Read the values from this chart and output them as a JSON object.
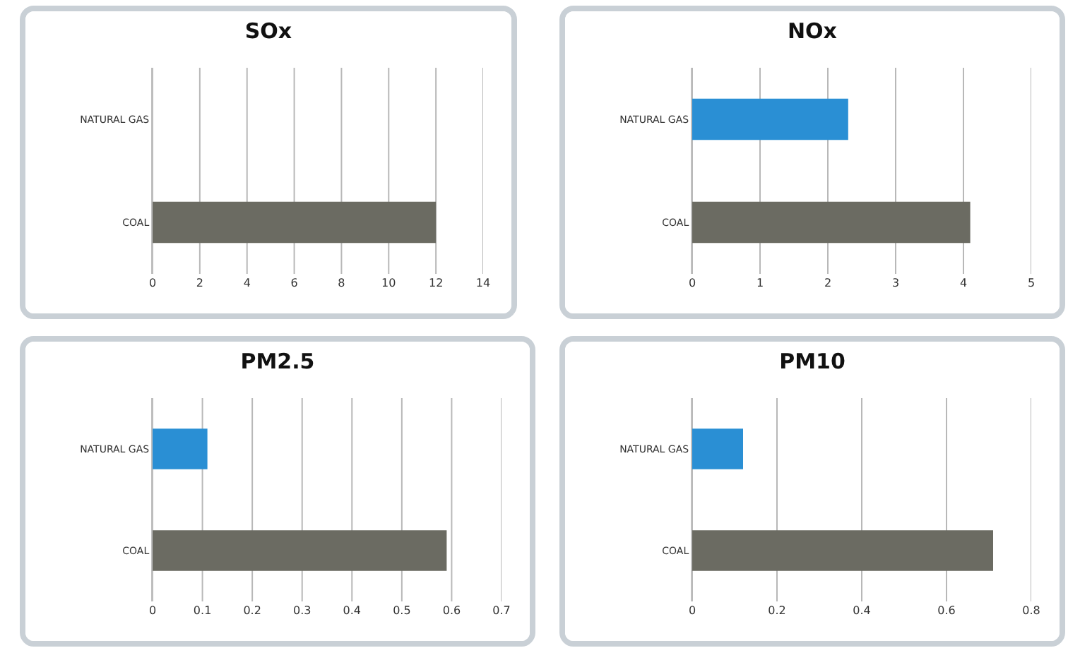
{
  "chart_data": [
    {
      "type": "bar",
      "title": "SOx",
      "orientation": "horizontal",
      "categories": [
        "NATURAL GAS",
        "COAL"
      ],
      "values": [
        0,
        12
      ],
      "colors": [
        "#2a8fd4",
        "#6b6b62"
      ],
      "xlim": [
        0,
        14
      ],
      "xticks": [
        0,
        2,
        4,
        6,
        8,
        10,
        12,
        14
      ],
      "grid": "x"
    },
    {
      "type": "bar",
      "title": "NOx",
      "orientation": "horizontal",
      "categories": [
        "NATURAL GAS",
        "COAL"
      ],
      "values": [
        2.3,
        4.1
      ],
      "colors": [
        "#2a8fd4",
        "#6b6b62"
      ],
      "xlim": [
        0,
        5
      ],
      "xticks": [
        0,
        1,
        2,
        3,
        4,
        5
      ],
      "grid": "x"
    },
    {
      "type": "bar",
      "title": "PM2.5",
      "orientation": "horizontal",
      "categories": [
        "NATURAL GAS",
        "COAL"
      ],
      "values": [
        0.11,
        0.59
      ],
      "colors": [
        "#2a8fd4",
        "#6b6b62"
      ],
      "xlim": [
        0,
        0.7
      ],
      "xticks": [
        0,
        0.1,
        0.2,
        0.3,
        0.4,
        0.5,
        0.6,
        0.7
      ],
      "grid": "x"
    },
    {
      "type": "bar",
      "title": "PM10",
      "orientation": "horizontal",
      "categories": [
        "NATURAL GAS",
        "COAL"
      ],
      "values": [
        0.12,
        0.71
      ],
      "colors": [
        "#2a8fd4",
        "#6b6b62"
      ],
      "xlim": [
        0,
        0.8
      ],
      "xticks": [
        0,
        0.2,
        0.4,
        0.6,
        0.8
      ],
      "grid": "x"
    }
  ]
}
